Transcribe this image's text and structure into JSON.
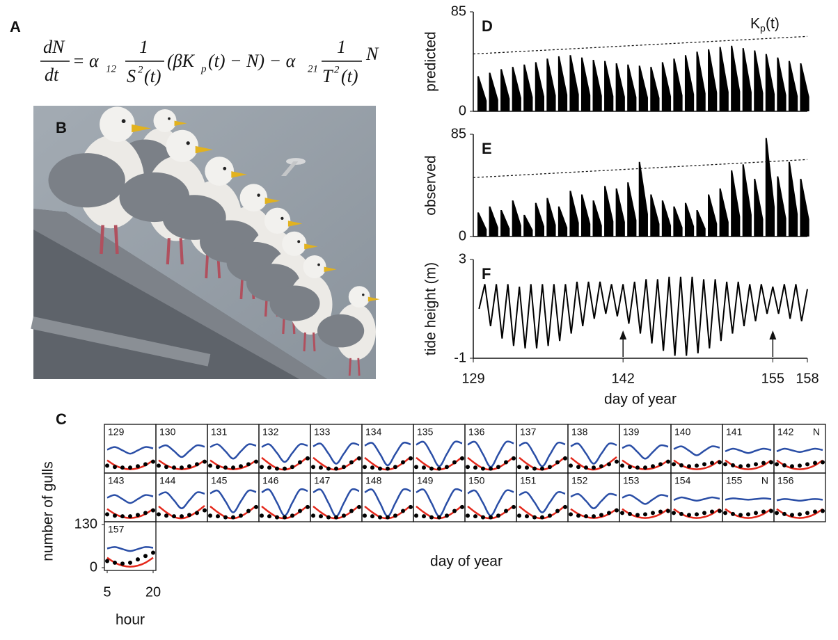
{
  "figure": {
    "equation_label": "A",
    "photo_label": "B",
    "equation": [
      "dN",
      "dt",
      "= α",
      "12",
      "1",
      "S",
      "2",
      "(t)",
      "(βK",
      "p",
      "(t) − N) − α",
      "21",
      "1",
      "T",
      "2",
      "(t)",
      "N"
    ]
  },
  "chart_data": [
    {
      "type": "spike",
      "panel": "D",
      "ylabel": "predicted",
      "ylim": [
        0,
        85
      ],
      "yticks": [
        0,
        85
      ],
      "xlim": [
        129,
        158
      ],
      "color": "#000000",
      "x": [
        129,
        130,
        131,
        132,
        133,
        134,
        135,
        136,
        137,
        138,
        139,
        140,
        141,
        142,
        143,
        144,
        145,
        146,
        147,
        148,
        149,
        150,
        151,
        152,
        153,
        154,
        155,
        156,
        157
      ],
      "values": [
        30,
        33,
        36,
        38,
        40,
        42,
        45,
        47,
        48,
        46,
        44,
        43,
        41,
        40,
        39,
        38,
        42,
        45,
        48,
        51,
        53,
        55,
        56,
        54,
        52,
        49,
        46,
        43,
        41
      ],
      "trend": {
        "x": [
          129,
          158
        ],
        "values": [
          49,
          64
        ]
      },
      "annotation": [
        "K",
        "p",
        "(t)"
      ]
    },
    {
      "type": "spike",
      "panel": "E",
      "ylabel": "observed",
      "ylim": [
        0,
        85
      ],
      "yticks": [
        0,
        85
      ],
      "xlim": [
        129,
        158
      ],
      "color": "#000000",
      "x": [
        129,
        130,
        131,
        132,
        133,
        134,
        135,
        136,
        137,
        138,
        139,
        140,
        141,
        142,
        143,
        144,
        145,
        146,
        147,
        148,
        149,
        150,
        151,
        152,
        153,
        154,
        155,
        156,
        157
      ],
      "values": [
        20,
        25,
        22,
        30,
        18,
        28,
        32,
        25,
        38,
        35,
        30,
        42,
        40,
        45,
        62,
        35,
        30,
        25,
        28,
        22,
        35,
        40,
        55,
        60,
        48,
        82,
        50,
        62,
        48
      ],
      "trend": {
        "x": [
          129,
          158
        ],
        "values": [
          49,
          64
        ]
      }
    },
    {
      "type": "line",
      "panel": "F",
      "ylabel": "tide height (m)",
      "xlabel": "day of year",
      "ylim": [
        -1,
        3
      ],
      "yticks": [
        -1,
        3
      ],
      "xlim": [
        129,
        158
      ],
      "xticks": [
        129,
        142,
        155,
        158
      ],
      "color": "#000000",
      "x": [
        129.5,
        130,
        130.5,
        131,
        131.5,
        132,
        132.5,
        133,
        133.5,
        134,
        134.5,
        135,
        135.5,
        136,
        136.5,
        137,
        137.5,
        138,
        138.5,
        139,
        139.5,
        140,
        140.5,
        141,
        141.5,
        142,
        142.5,
        143,
        143.5,
        144,
        144.5,
        145,
        145.5,
        146,
        146.5,
        147,
        147.5,
        148,
        148.5,
        149,
        149.5,
        150,
        150.5,
        151,
        151.5,
        152,
        152.5,
        153,
        153.5,
        154,
        154.5,
        155,
        155.5,
        156,
        156.5,
        157,
        157.5,
        158
      ],
      "values": [
        1.0,
        2.0,
        0.3,
        2.0,
        -0.2,
        2.0,
        -0.5,
        1.9,
        -0.6,
        2.0,
        -0.6,
        2.0,
        -0.5,
        2.0,
        -0.3,
        2.0,
        0.0,
        2.1,
        0.3,
        2.1,
        0.6,
        2.1,
        0.8,
        2.0,
        0.7,
        2.0,
        0.4,
        2.1,
        0.0,
        2.2,
        -0.4,
        2.2,
        -0.7,
        2.3,
        -0.9,
        2.3,
        -0.9,
        2.3,
        -0.8,
        2.2,
        -0.6,
        2.2,
        -0.3,
        2.1,
        0.0,
        2.1,
        0.3,
        2.0,
        0.5,
        2.0,
        0.8,
        1.9,
        0.8,
        2.0,
        0.6,
        2.0,
        0.5,
        1.8
      ],
      "markers": [
        142,
        155
      ]
    },
    {
      "type": "small-multiples",
      "panel": "C",
      "ylabel": "number of gulls",
      "xlabel": "hour",
      "caption": "day of year",
      "ylim": [
        0,
        130
      ],
      "yticks": [
        0,
        130
      ],
      "xlim": [
        5,
        20
      ],
      "xticks": [
        5,
        20
      ],
      "series_colors": {
        "blue": "#2a4ea6",
        "red": "#e4281b",
        "dots": "#000000"
      },
      "hours": [
        5,
        7.5,
        10,
        12.5,
        15,
        17.5,
        20
      ],
      "panels": [
        {
          "label": "129",
          "blue": [
            62,
            70,
            60,
            50,
            60,
            70,
            66
          ],
          "red": [
            30,
            15,
            6,
            3,
            6,
            15,
            30
          ],
          "dots": [
            14,
            10,
            8,
            8,
            12,
            18,
            26
          ]
        },
        {
          "label": "130",
          "blue": [
            67,
            75,
            58,
            40,
            58,
            75,
            71
          ],
          "red": [
            30,
            15,
            6,
            3,
            6,
            15,
            30
          ],
          "dots": [
            14,
            10,
            8,
            8,
            12,
            18,
            26
          ]
        },
        {
          "label": "131",
          "blue": [
            70,
            78,
            57,
            35,
            57,
            78,
            74
          ],
          "red": [
            30,
            15,
            6,
            3,
            6,
            15,
            30
          ],
          "dots": [
            14,
            10,
            8,
            8,
            12,
            18,
            26
          ]
        },
        {
          "label": "132",
          "blue": [
            70,
            78,
            52,
            25,
            52,
            78,
            74
          ],
          "red": [
            38,
            20,
            6,
            2,
            8,
            22,
            40
          ],
          "dots": [
            10,
            8,
            5,
            5,
            10,
            24,
            36
          ]
        },
        {
          "label": "133",
          "blue": [
            72,
            80,
            50,
            20,
            50,
            80,
            76
          ],
          "red": [
            38,
            20,
            6,
            2,
            8,
            22,
            40
          ],
          "dots": [
            10,
            8,
            5,
            5,
            10,
            24,
            36
          ]
        },
        {
          "label": "134",
          "blue": [
            74,
            82,
            49,
            15,
            49,
            82,
            78
          ],
          "red": [
            38,
            20,
            6,
            2,
            8,
            22,
            40
          ],
          "dots": [
            10,
            8,
            5,
            5,
            10,
            24,
            36
          ]
        },
        {
          "label": "135",
          "blue": [
            77,
            85,
            49,
            12,
            49,
            85,
            81
          ],
          "red": [
            38,
            20,
            6,
            2,
            8,
            22,
            40
          ],
          "dots": [
            10,
            8,
            5,
            5,
            10,
            24,
            36
          ]
        },
        {
          "label": "136",
          "blue": [
            77,
            85,
            48,
            10,
            48,
            85,
            81
          ],
          "red": [
            38,
            20,
            6,
            2,
            8,
            22,
            40
          ],
          "dots": [
            10,
            8,
            5,
            5,
            10,
            24,
            36
          ]
        },
        {
          "label": "137",
          "blue": [
            74,
            82,
            47,
            12,
            47,
            82,
            78
          ],
          "red": [
            38,
            20,
            6,
            2,
            8,
            22,
            40
          ],
          "dots": [
            10,
            8,
            5,
            5,
            10,
            24,
            36
          ]
        },
        {
          "label": "138",
          "blue": [
            72,
            80,
            50,
            20,
            50,
            80,
            76
          ],
          "red": [
            38,
            20,
            6,
            2,
            8,
            22,
            40
          ],
          "dots": [
            14,
            10,
            8,
            8,
            12,
            18,
            26
          ]
        },
        {
          "label": "139",
          "blue": [
            67,
            75,
            55,
            35,
            55,
            75,
            71
          ],
          "red": [
            30,
            15,
            6,
            3,
            6,
            15,
            30
          ],
          "dots": [
            14,
            10,
            8,
            8,
            12,
            18,
            26
          ]
        },
        {
          "label": "140",
          "blue": [
            64,
            72,
            59,
            45,
            59,
            72,
            68
          ],
          "red": [
            30,
            15,
            6,
            3,
            6,
            15,
            30
          ],
          "dots": [
            18,
            15,
            12,
            14,
            18,
            22,
            24
          ]
        },
        {
          "label": "141",
          "blue": [
            57,
            65,
            59,
            52,
            59,
            65,
            61
          ],
          "red": [
            30,
            15,
            6,
            3,
            6,
            15,
            30
          ],
          "dots": [
            18,
            15,
            12,
            14,
            18,
            22,
            24
          ]
        },
        {
          "label": "142",
          "note": "N",
          "blue": [
            57,
            65,
            60,
            55,
            60,
            65,
            61
          ],
          "red": [
            30,
            15,
            6,
            3,
            6,
            15,
            30
          ],
          "dots": [
            18,
            15,
            12,
            14,
            18,
            22,
            24
          ]
        },
        {
          "label": "143",
          "blue": [
            64,
            72,
            60,
            48,
            60,
            72,
            68
          ],
          "red": [
            30,
            15,
            6,
            3,
            6,
            15,
            30
          ],
          "dots": [
            14,
            10,
            8,
            8,
            12,
            18,
            26
          ]
        },
        {
          "label": "144",
          "blue": [
            72,
            80,
            56,
            32,
            56,
            80,
            76
          ],
          "red": [
            38,
            20,
            6,
            2,
            8,
            22,
            40
          ],
          "dots": [
            14,
            10,
            8,
            8,
            12,
            18,
            26
          ]
        },
        {
          "label": "145",
          "blue": [
            77,
            85,
            53,
            20,
            53,
            85,
            81
          ],
          "red": [
            38,
            20,
            6,
            2,
            8,
            22,
            40
          ],
          "dots": [
            10,
            8,
            5,
            5,
            10,
            24,
            36
          ]
        },
        {
          "label": "146",
          "blue": [
            80,
            88,
            49,
            10,
            49,
            88,
            84
          ],
          "red": [
            38,
            20,
            6,
            2,
            8,
            22,
            40
          ],
          "dots": [
            10,
            8,
            5,
            5,
            10,
            24,
            36
          ]
        },
        {
          "label": "147",
          "blue": [
            80,
            88,
            48,
            8,
            48,
            88,
            84
          ],
          "red": [
            38,
            20,
            6,
            2,
            8,
            22,
            40
          ],
          "dots": [
            10,
            8,
            5,
            5,
            10,
            24,
            36
          ]
        },
        {
          "label": "148",
          "blue": [
            80,
            88,
            48,
            8,
            48,
            88,
            84
          ],
          "red": [
            38,
            20,
            6,
            2,
            8,
            22,
            40
          ],
          "dots": [
            10,
            8,
            5,
            5,
            10,
            24,
            36
          ]
        },
        {
          "label": "149",
          "blue": [
            80,
            88,
            48,
            8,
            48,
            88,
            84
          ],
          "red": [
            38,
            20,
            6,
            2,
            8,
            22,
            40
          ],
          "dots": [
            10,
            8,
            5,
            5,
            10,
            24,
            36
          ]
        },
        {
          "label": "150",
          "blue": [
            77,
            85,
            48,
            10,
            48,
            85,
            81
          ],
          "red": [
            38,
            20,
            6,
            2,
            8,
            22,
            40
          ],
          "dots": [
            10,
            8,
            5,
            5,
            10,
            24,
            36
          ]
        },
        {
          "label": "151",
          "blue": [
            72,
            80,
            50,
            20,
            50,
            80,
            76
          ],
          "red": [
            38,
            20,
            6,
            2,
            8,
            22,
            40
          ],
          "dots": [
            10,
            8,
            5,
            5,
            10,
            24,
            36
          ]
        },
        {
          "label": "152",
          "blue": [
            67,
            75,
            54,
            32,
            54,
            75,
            71
          ],
          "red": [
            30,
            15,
            6,
            3,
            6,
            15,
            30
          ],
          "dots": [
            14,
            10,
            8,
            8,
            12,
            18,
            26
          ]
        },
        {
          "label": "153",
          "blue": [
            64,
            72,
            59,
            45,
            59,
            72,
            68
          ],
          "red": [
            30,
            15,
            6,
            3,
            6,
            15,
            30
          ],
          "dots": [
            18,
            15,
            12,
            14,
            18,
            22,
            24
          ]
        },
        {
          "label": "154",
          "blue": [
            57,
            65,
            60,
            55,
            60,
            65,
            61
          ],
          "red": [
            30,
            15,
            6,
            3,
            6,
            15,
            30
          ],
          "dots": [
            18,
            15,
            12,
            14,
            18,
            22,
            24
          ]
        },
        {
          "label": "155",
          "note": "N",
          "blue": [
            58,
            62,
            60,
            58,
            60,
            62,
            60
          ],
          "red": [
            30,
            15,
            6,
            3,
            6,
            15,
            30
          ],
          "dots": [
            18,
            15,
            12,
            14,
            18,
            22,
            24
          ]
        },
        {
          "label": "156",
          "blue": [
            56,
            60,
            58,
            55,
            58,
            60,
            58
          ],
          "red": [
            30,
            15,
            6,
            3,
            6,
            15,
            30
          ],
          "dots": [
            18,
            15,
            12,
            14,
            18,
            22,
            24
          ]
        },
        {
          "label": "157",
          "blue": [
            58,
            62,
            56,
            50,
            56,
            62,
            60
          ],
          "red": [
            30,
            15,
            6,
            3,
            6,
            15,
            30
          ],
          "dots": [
            20,
            15,
            12,
            15,
            25,
            35,
            45
          ]
        }
      ]
    }
  ]
}
